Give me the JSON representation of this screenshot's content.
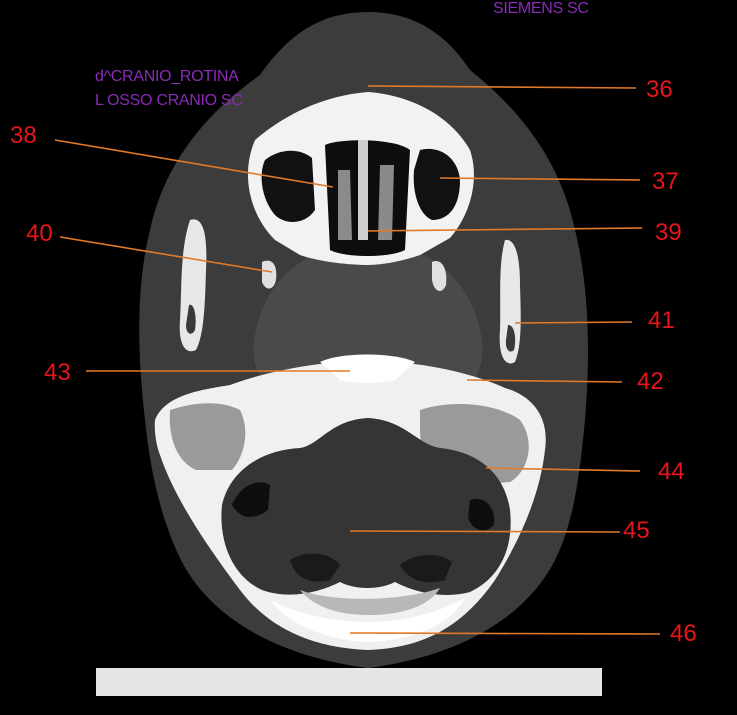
{
  "overlay": {
    "manufacturer": "SIEMENS SC",
    "series_line1": "d^CRANIO_ROTINA",
    "series_line2": "L OSSO CRANIO SC"
  },
  "colors": {
    "label": "#e8141a",
    "leader": "#e07a2a",
    "overlay_text": "#8b2bb8"
  },
  "labels": {
    "l36": "36",
    "l37": "37",
    "l38": "38",
    "l39": "39",
    "l40": "40",
    "l41": "41",
    "l42": "42",
    "l43": "43",
    "l44": "44",
    "l45": "45",
    "l46": "46"
  }
}
